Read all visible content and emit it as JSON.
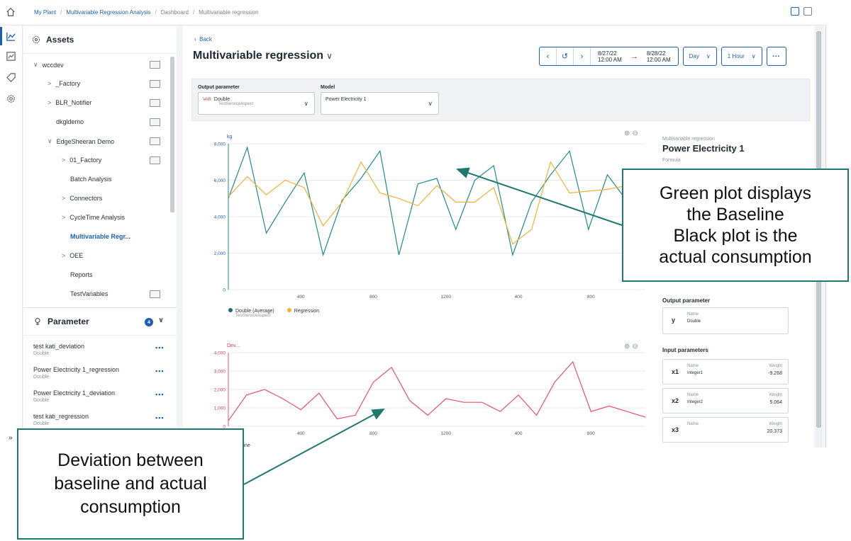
{
  "breadcrumb": [
    "My Plant",
    "Multivariable Regression Analysis",
    "Dashboard",
    "Multivariable regression"
  ],
  "assets_panel": {
    "title": "Assets",
    "tree": [
      {
        "label": "wccdev",
        "chev": "∨",
        "indent": 0,
        "button": true,
        "active": false
      },
      {
        "label": "_Factory",
        "chev": ">",
        "indent": 1,
        "button": true,
        "active": false
      },
      {
        "label": "BLR_Notifier",
        "chev": ">",
        "indent": 1,
        "button": true,
        "active": false
      },
      {
        "label": "dkgldemo",
        "chev": "",
        "indent": 1,
        "button": true,
        "active": false
      },
      {
        "label": "EdgeSheeran Demo",
        "chev": "∨",
        "indent": 1,
        "button": true,
        "active": false
      },
      {
        "label": "01_Factory",
        "chev": ">",
        "indent": 2,
        "button": true,
        "active": false
      },
      {
        "label": "Batch Analysis",
        "chev": "",
        "indent": 2,
        "button": false,
        "active": false
      },
      {
        "label": "Connectors",
        "chev": ">",
        "indent": 2,
        "button": false,
        "active": false
      },
      {
        "label": "CycleTime Analysis",
        "chev": ">",
        "indent": 2,
        "button": false,
        "active": false
      },
      {
        "label": "Multivariable Regr...",
        "chev": "",
        "indent": 2,
        "button": false,
        "active": true
      },
      {
        "label": "OEE",
        "chev": ">",
        "indent": 2,
        "button": false,
        "active": false
      },
      {
        "label": "Reports",
        "chev": "",
        "indent": 2,
        "button": false,
        "active": false
      },
      {
        "label": "TestVariables",
        "chev": "",
        "indent": 2,
        "button": true,
        "active": false
      }
    ]
  },
  "parameter_panel": {
    "title": "Parameter",
    "badge": "4",
    "items": [
      {
        "name": "test kati_deviation",
        "type": "Double"
      },
      {
        "name": "Power Electricity 1_regression",
        "type": "Double"
      },
      {
        "name": "Power Electricity 1_deviation",
        "type": "Double"
      },
      {
        "name": "test kati_regression",
        "type": "Double"
      }
    ]
  },
  "header": {
    "back_label": "Back",
    "title": "Multivariable regression",
    "date_from": "8/27/22",
    "time_from": "12:00 AM",
    "date_to": "8/28/22",
    "time_to": "12:00 AM",
    "range_select": "Day",
    "interval_select": "1 Hour"
  },
  "filters": {
    "output_label": "Output parameter",
    "output_tag": "VAR",
    "output_value": "Double",
    "output_sub": "TestServiceAspect",
    "model_label": "Model",
    "model_value": "Power Electricity 1"
  },
  "legend": {
    "series1": "Double (Average)",
    "series1_sub": "TestServiceAspect",
    "series2": "Regression",
    "bottom_partial": "...line"
  },
  "chart_data": [
    {
      "type": "line",
      "ylabel": "kg",
      "ylim": [
        0,
        8000
      ],
      "yticks": [
        "0",
        "2,000",
        "4,000",
        "6,000",
        "8,000"
      ],
      "xticks": [
        "400",
        "800",
        "1200",
        "400",
        "800"
      ],
      "series": [
        {
          "name": "Double (Average)",
          "color": "#1f8a8a",
          "values": [
            5000,
            7800,
            3100,
            4800,
            6400,
            1900,
            4900,
            6100,
            7600,
            1900,
            5800,
            6100,
            3300,
            6000,
            6800,
            1900,
            4800,
            6300,
            7600,
            3300,
            6300,
            4900,
            4000
          ]
        },
        {
          "name": "Regression",
          "color": "#f2b233",
          "values": [
            5100,
            6200,
            5200,
            6000,
            5600,
            3500,
            4800,
            7000,
            5300,
            5000,
            4600,
            5700,
            4800,
            4800,
            5600,
            2500,
            3300,
            7000,
            5300,
            5400,
            5500,
            5700,
            4500
          ]
        }
      ]
    },
    {
      "type": "line",
      "ylabel": "Dev...",
      "ylim": [
        0,
        4000
      ],
      "yticks": [
        "0",
        "1,000",
        "2,000",
        "3,000",
        "4,000"
      ],
      "xticks": [
        "400",
        "800",
        "1200",
        "400",
        "800"
      ],
      "series": [
        {
          "name": "",
          "color": "#e8506a",
          "values": [
            300,
            1700,
            2000,
            1500,
            900,
            1800,
            400,
            600,
            2400,
            3200,
            1400,
            600,
            1500,
            1300,
            1300,
            800,
            1700,
            600,
            2400,
            3500,
            800,
            1100,
            800,
            500
          ]
        }
      ]
    }
  ],
  "info_pane": {
    "caption": "Multivariable regression",
    "model_title": "Power Electricity 1",
    "formula_label": "Formula",
    "output_section": "Output parameter",
    "output_card": {
      "var": "y",
      "name_label": "Name",
      "name_value": "Double"
    },
    "input_section": "Input parameters",
    "inputs": [
      {
        "var": "x1",
        "name_label": "Name",
        "name_value": "Integer1",
        "weight_label": "Weight",
        "weight_value": "-9.268"
      },
      {
        "var": "x2",
        "name_label": "Name",
        "name_value": "Integer2",
        "weight_label": "Weight",
        "weight_value": "5.064"
      },
      {
        "var": "x3",
        "name_label": "Name",
        "name_value": "",
        "weight_label": "Weight",
        "weight_value": "20.373"
      }
    ]
  },
  "callouts": {
    "baseline": [
      "Green plot displays",
      "the Baseline",
      "Black plot is the",
      "actual consumption"
    ],
    "deviation": [
      "Deviation between",
      "baseline and actual",
      "consumption"
    ]
  },
  "colors": {
    "accent": "#1d5fb8",
    "callout_border": "#1f7a6e",
    "baseline": "#1f8a8a",
    "regression": "#f2b233",
    "deviation": "#e8506a"
  }
}
